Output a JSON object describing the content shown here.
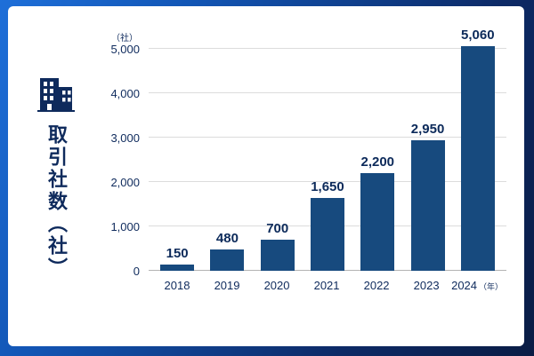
{
  "sidebar": {
    "title": "取引社数（社）",
    "icon": "building-icon"
  },
  "chart_data": {
    "type": "bar",
    "title": "取引社数（社）",
    "unit_label": "（社）",
    "x_unit_label": "（年）",
    "categories": [
      "2018",
      "2019",
      "2020",
      "2021",
      "2022",
      "2023",
      "2024"
    ],
    "values": [
      150,
      480,
      700,
      1650,
      2200,
      2950,
      5060
    ],
    "value_labels": [
      "150",
      "480",
      "700",
      "1,650",
      "2,200",
      "2,950",
      "5,060"
    ],
    "y_ticks": [
      0,
      1000,
      2000,
      3000,
      4000,
      5000
    ],
    "y_tick_labels": [
      "0",
      "1,000",
      "2,000",
      "3,000",
      "4,000",
      "5,000"
    ],
    "ylim": [
      0,
      5000
    ],
    "grid": true,
    "legend": false,
    "bar_color": "#174a7e",
    "label_color": "#0c2a5a",
    "background_frame_colors": [
      "#1e6fd9",
      "#0a1c44"
    ]
  }
}
